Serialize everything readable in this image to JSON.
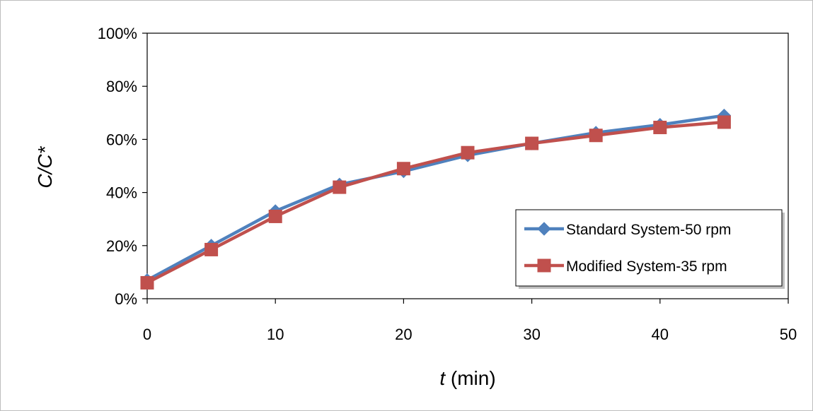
{
  "chart_data": {
    "type": "line",
    "x": [
      0,
      5,
      10,
      15,
      20,
      25,
      30,
      35,
      40,
      45
    ],
    "series": [
      {
        "name": "Standard System-50 rpm",
        "values": [
          0.07,
          0.2,
          0.33,
          0.43,
          0.48,
          0.54,
          0.585,
          0.625,
          0.655,
          0.69
        ],
        "color": "#4F81BD",
        "marker": "diamond"
      },
      {
        "name": "Modified System-35 rpm",
        "values": [
          0.06,
          0.185,
          0.31,
          0.42,
          0.49,
          0.55,
          0.585,
          0.615,
          0.645,
          0.665
        ],
        "color": "#C0504D",
        "marker": "square"
      }
    ],
    "xlabel_var": "t",
    "xlabel_unit": " (min)",
    "ylabel": "C/C*",
    "xlim": [
      0,
      50
    ],
    "ylim": [
      0,
      1
    ],
    "xticks": [
      0,
      10,
      20,
      30,
      40,
      50
    ],
    "yticks": [
      "0%",
      "20%",
      "40%",
      "60%",
      "80%",
      "100%"
    ],
    "grid": false,
    "legend_position": "lower-right"
  }
}
